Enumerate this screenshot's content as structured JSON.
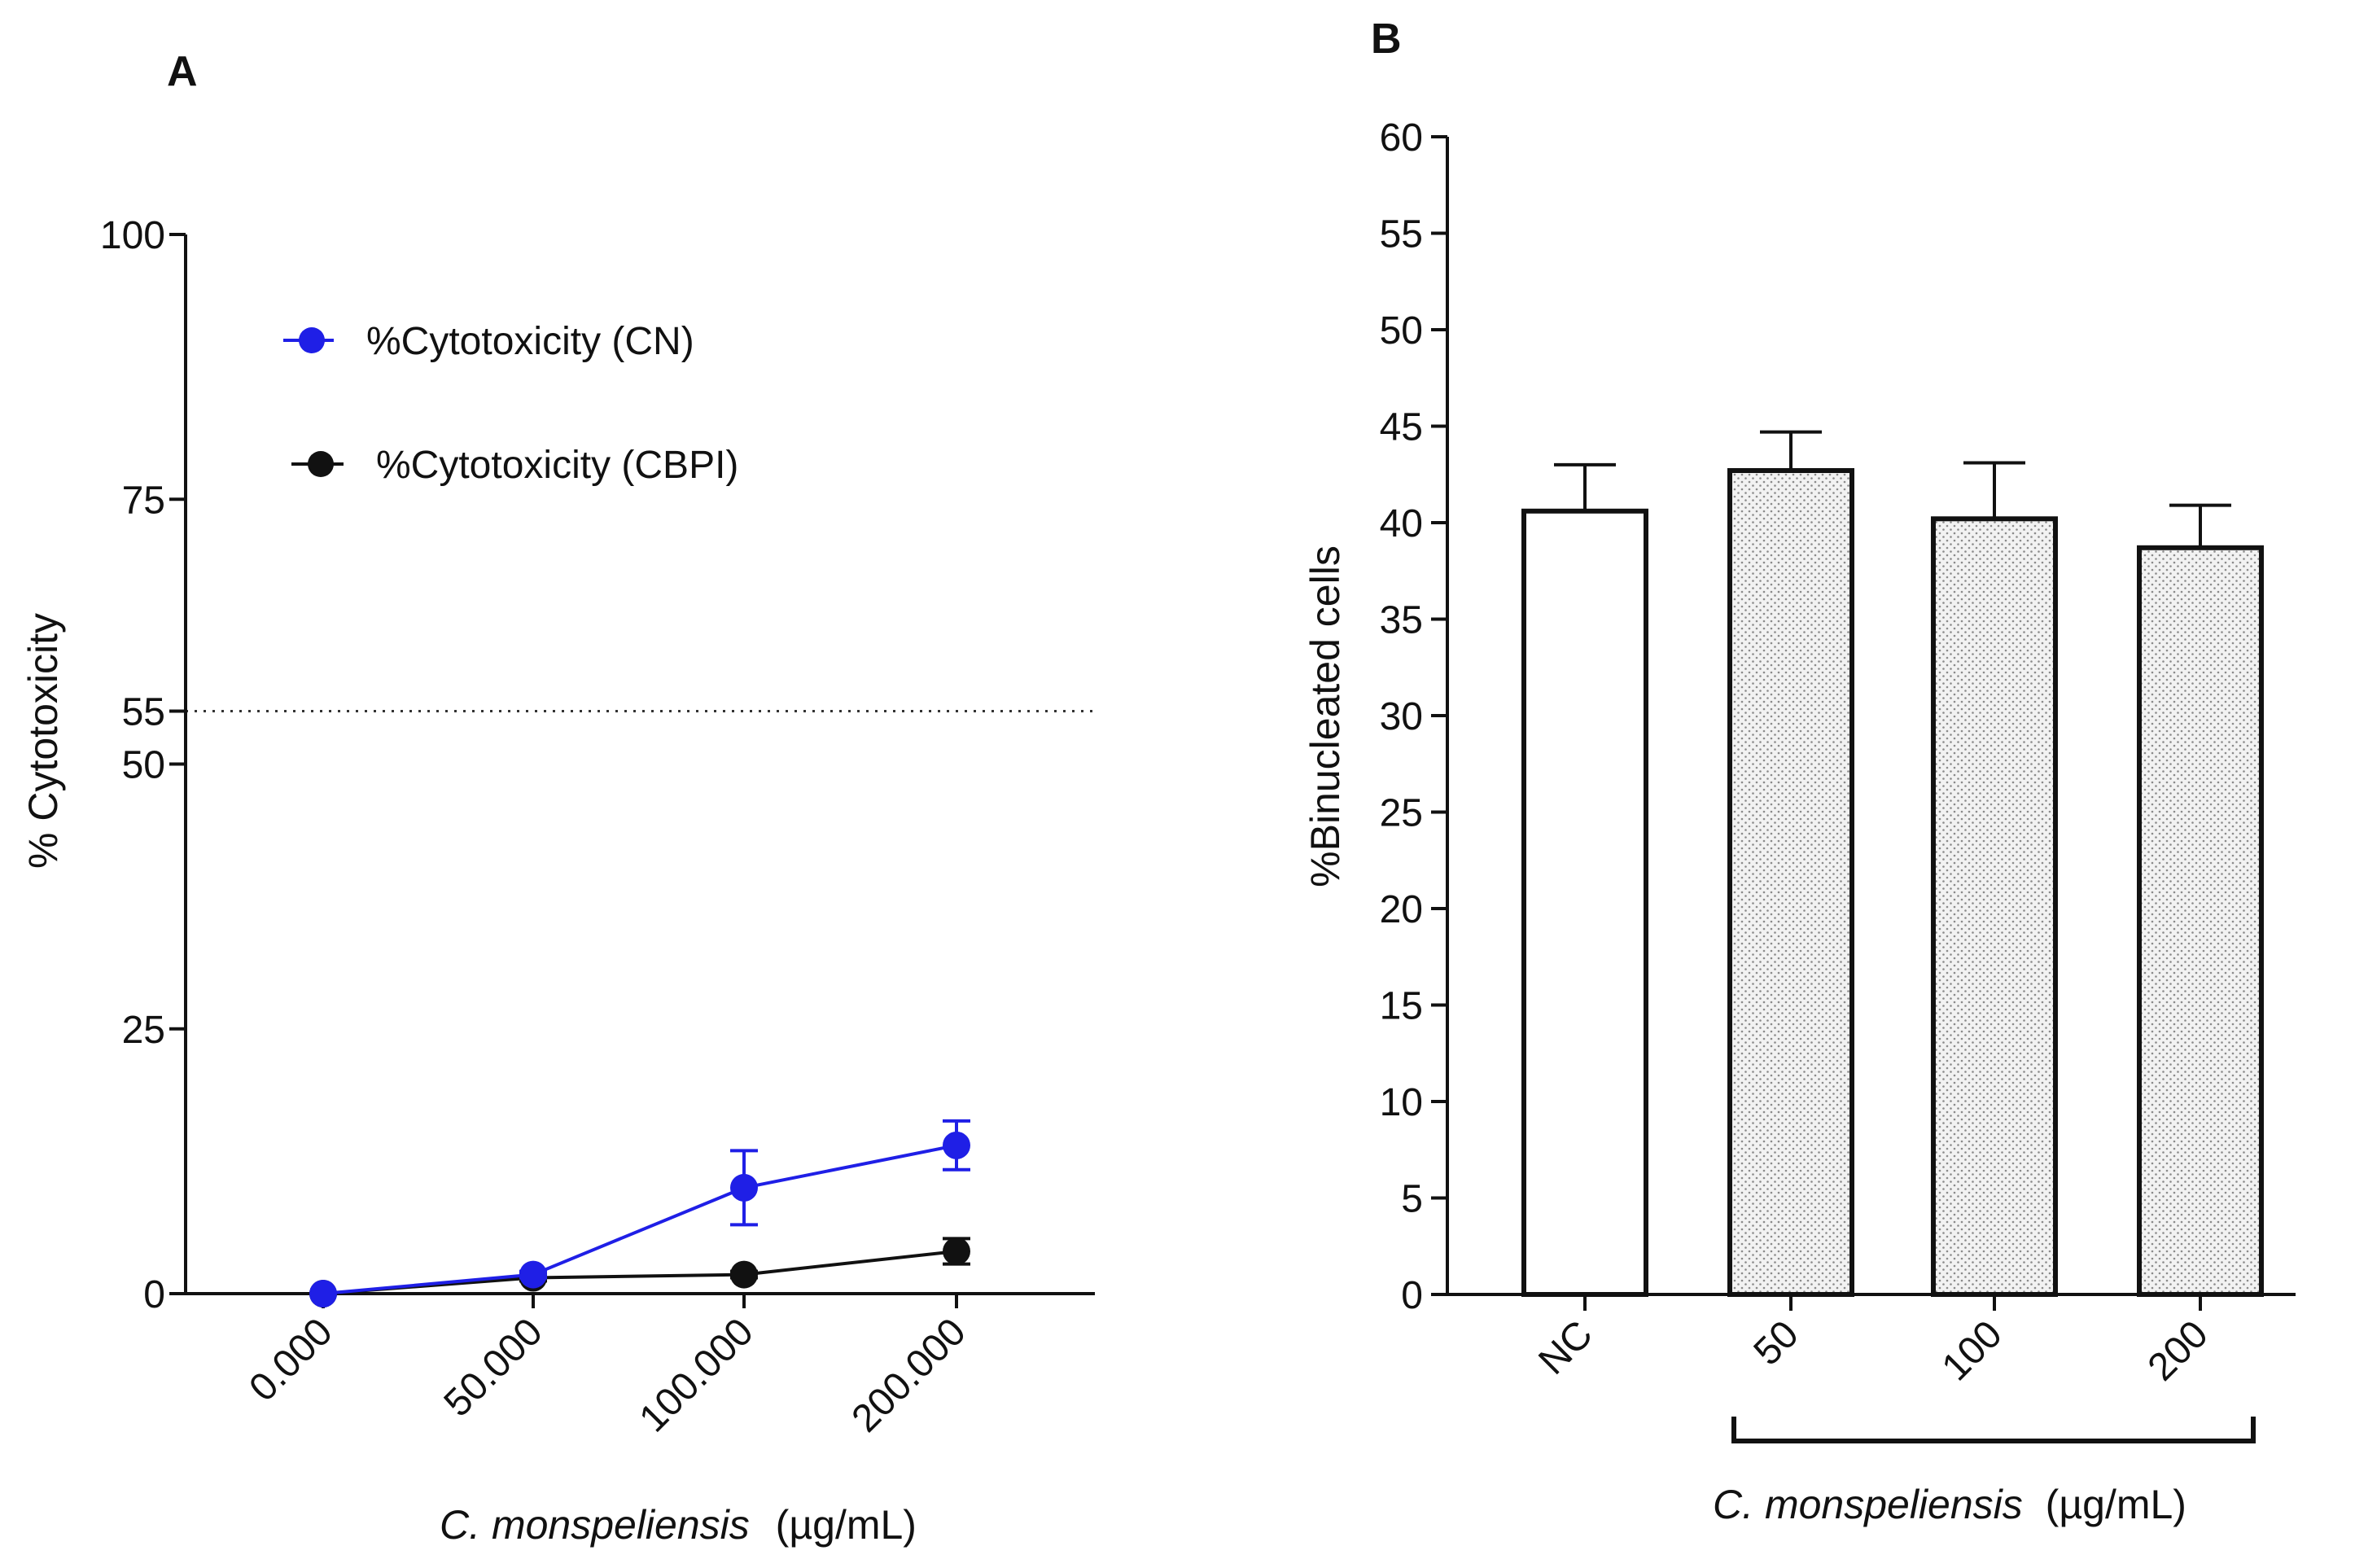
{
  "chart_data": [
    {
      "panel": "A",
      "type": "line",
      "title": "",
      "xlabel_italic": "C. monspeliensis",
      "xlabel_unit": "(µg/mL)",
      "ylabel": "% Cytotoxicity",
      "categories": [
        "0.000",
        "50.000",
        "100.000",
        "200.000"
      ],
      "ylim": [
        0,
        100
      ],
      "yticks": [
        0,
        25,
        50,
        55,
        75,
        100
      ],
      "reference_line": {
        "y": 55,
        "style": "dotted"
      },
      "legend_position": "top-left",
      "series": [
        {
          "name": "%Cytotoxicity (CN)",
          "color": "#1f1fe6",
          "values": [
            0,
            1.8,
            10,
            14
          ],
          "errors": [
            0,
            0.3,
            3.5,
            2.3
          ]
        },
        {
          "name": "%Cytotoxicity (CBPI)",
          "color": "#111111",
          "values": [
            0,
            1.5,
            1.8,
            4
          ],
          "errors": [
            0,
            0.3,
            0.3,
            1.2
          ]
        }
      ]
    },
    {
      "panel": "B",
      "type": "bar",
      "title": "",
      "xlabel_italic": "C. monspeliensis",
      "xlabel_unit": "(µg/mL)",
      "ylabel": "%Binucleated cells",
      "categories": [
        "NC",
        "50",
        "100",
        "200"
      ],
      "ylim": [
        0,
        60
      ],
      "yticks": [
        0,
        5,
        10,
        15,
        20,
        25,
        30,
        35,
        40,
        45,
        50,
        55,
        60
      ],
      "values": [
        40.6,
        42.7,
        40.2,
        38.7
      ],
      "errors": [
        2.4,
        2.0,
        2.9,
        2.2
      ],
      "fill_patterns": [
        "solid-white",
        "dotted",
        "dotted",
        "dotted"
      ],
      "bracket": {
        "from": "50",
        "to": "200"
      }
    }
  ]
}
